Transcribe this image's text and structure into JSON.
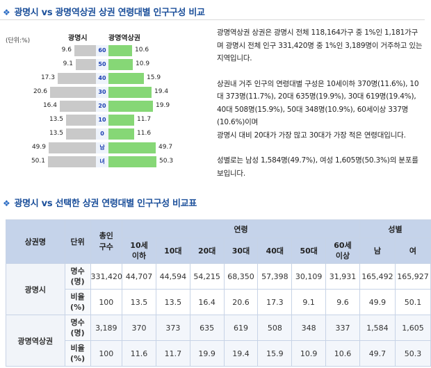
{
  "section1": {
    "title": "광명시 vs 광명역상권 상권 연령대별 인구구성 비교"
  },
  "section2": {
    "title": "광명시 vs 선택한 상권 연령대별 인구구성 비교표"
  },
  "pyramid": {
    "unit_label": "(단위:%)",
    "left_header": "광명시",
    "right_header": "광명역상권",
    "rows": [
      {
        "label": "60",
        "left": 9.6,
        "right": 10.6,
        "left_text": "9.6",
        "right_text": "10.6"
      },
      {
        "label": "50",
        "left": 9.1,
        "right": 10.9,
        "left_text": "9.1",
        "right_text": "10.9"
      },
      {
        "label": "40",
        "left": 17.3,
        "right": 15.9,
        "left_text": "17.3",
        "right_text": "15.9"
      },
      {
        "label": "30",
        "left": 20.6,
        "right": 19.4,
        "left_text": "20.6",
        "right_text": "19.4"
      },
      {
        "label": "20",
        "left": 16.4,
        "right": 19.9,
        "left_text": "16.4",
        "right_text": "19.9"
      },
      {
        "label": "10",
        "left": 13.5,
        "right": 11.7,
        "left_text": "13.5",
        "right_text": "11.7"
      },
      {
        "label": "0",
        "left": 13.5,
        "right": 11.6,
        "left_text": "13.5",
        "right_text": "11.6"
      }
    ],
    "gender_rows": [
      {
        "label": "남",
        "left": 49.9,
        "right": 49.7,
        "left_text": "49.9",
        "right_text": "49.7"
      },
      {
        "label": "녀",
        "left": 50.1,
        "right": 50.3,
        "left_text": "50.1",
        "right_text": "50.3"
      }
    ]
  },
  "description": {
    "p1": "광명역상권 상권은 광명시 전체 118,164가구 중 1%인 1,181가구며 광명시 전체 인구 331,420명 중 1%인 3,189명이 거주하고 있는 지역입니다.",
    "p2": "상권내 거주 인구의 연령대별 구성은 10세이하 370명(11.6%), 10대 373명(11.7%), 20대 635명(19.9%), 30대 619명(19.4%), 40대 508명(15.9%), 50대 348명(10.9%), 60세이상 337명(10.6%)이며",
    "p2b": "광명시 대비 20대가 가장 많고 30대가 가장 적은 연령대입니다.",
    "p3": "성별로는 남성 1,584명(49.7%), 여성 1,605명(50.3%)의 분포를 보입니다."
  },
  "table": {
    "headers": {
      "area": "상권명",
      "unit": "단위",
      "total": "총인\n구수",
      "age": "연령",
      "gender": "성별",
      "ages": [
        "10세\n이하",
        "10대",
        "20대",
        "30대",
        "40대",
        "50대",
        "60세\n이상"
      ],
      "genders": [
        "남",
        "여"
      ]
    },
    "groups": [
      {
        "name": "광명시",
        "rows": [
          {
            "metric": "명수\n(명)",
            "values": [
              "331,420",
              "44,707",
              "44,594",
              "54,215",
              "68,350",
              "57,398",
              "30,109",
              "31,931",
              "165,492",
              "165,927"
            ]
          },
          {
            "metric": "비율\n(%)",
            "values": [
              "100",
              "13.5",
              "13.5",
              "16.4",
              "20.6",
              "17.3",
              "9.1",
              "9.6",
              "49.9",
              "50.1"
            ]
          }
        ]
      },
      {
        "name": "광명역상권",
        "rows": [
          {
            "metric": "명수\n(명)",
            "values": [
              "3,189",
              "370",
              "373",
              "635",
              "619",
              "508",
              "348",
              "337",
              "1,584",
              "1,605"
            ]
          },
          {
            "metric": "비율\n(%)",
            "values": [
              "100",
              "11.6",
              "11.7",
              "19.9",
              "19.4",
              "15.9",
              "10.9",
              "10.6",
              "49.7",
              "50.3"
            ]
          }
        ]
      }
    ]
  }
}
